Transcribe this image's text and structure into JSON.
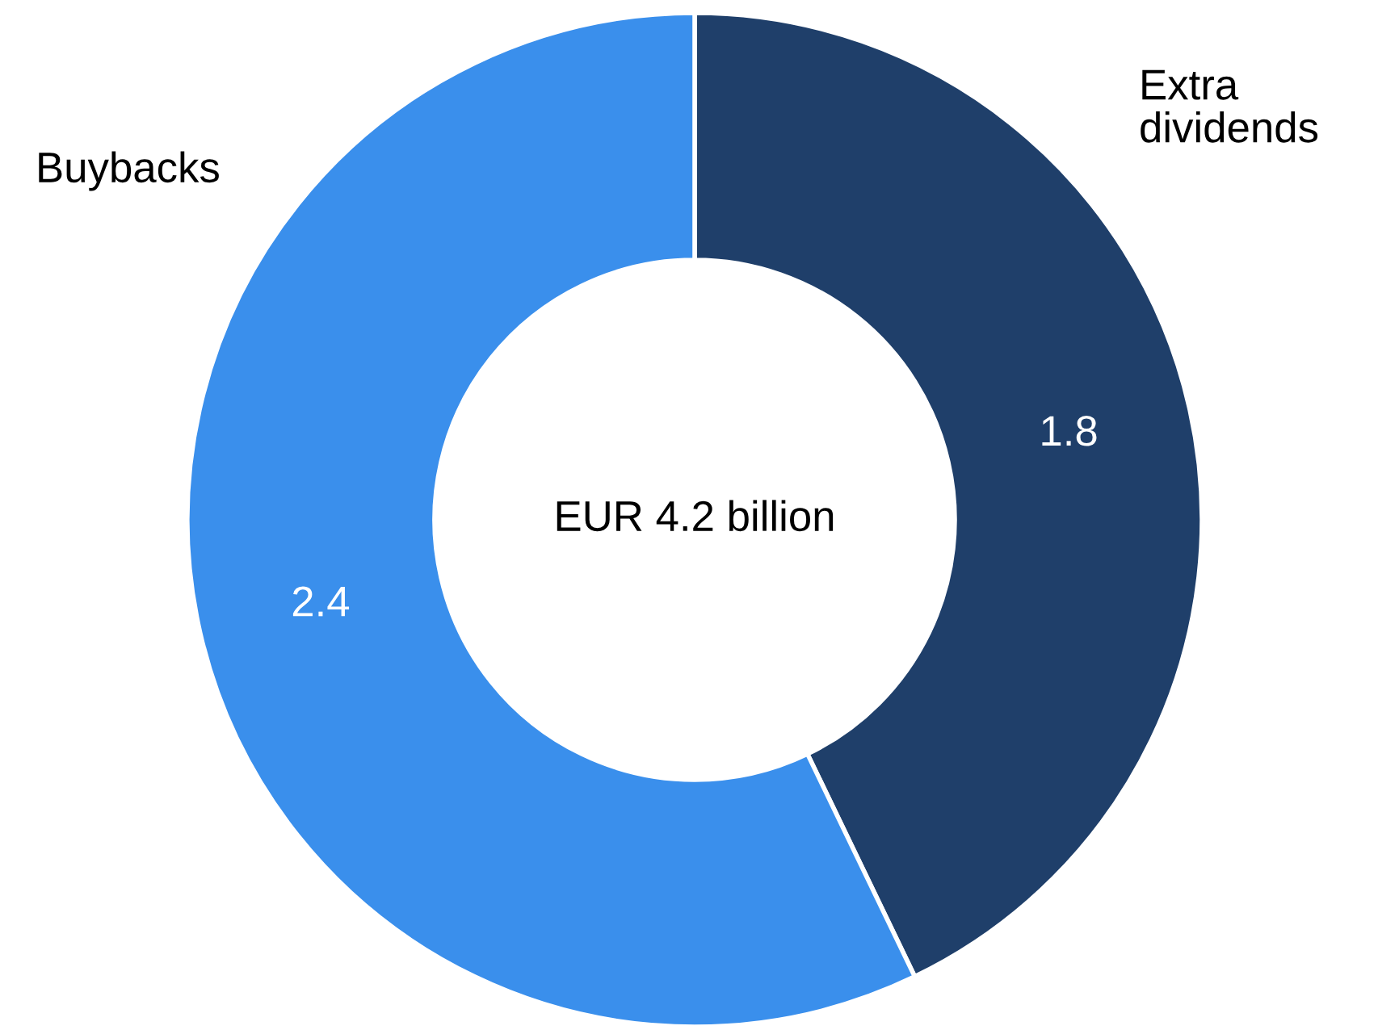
{
  "chart_data": {
    "type": "donut",
    "categories": [
      "Extra\ndividends",
      "Buybacks"
    ],
    "values": [
      1.8,
      2.4
    ],
    "colors": [
      "#1f3f6a",
      "#3a8fec"
    ],
    "data_labels": true,
    "legend": false,
    "annotations": [
      "EUR 4.2 billion"
    ]
  }
}
